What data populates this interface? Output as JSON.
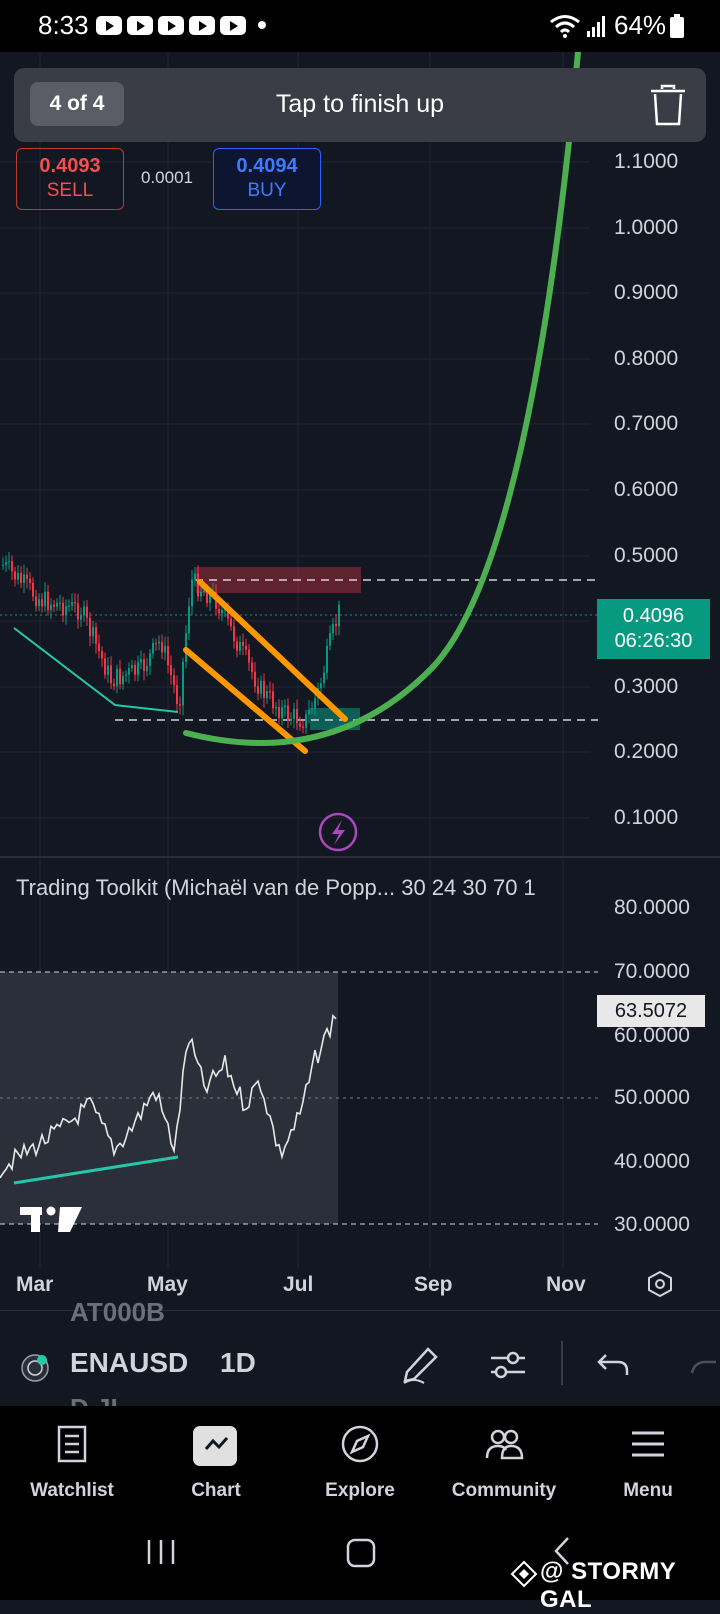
{
  "status_bar": {
    "time": "8:33",
    "notification_icons": [
      "youtube-icon",
      "youtube-icon",
      "youtube-icon",
      "youtube-icon",
      "youtube-icon"
    ],
    "battery": "64%"
  },
  "toast": {
    "counter": "4 of 4",
    "message": "Tap to finish up",
    "action_icon": "trash-icon"
  },
  "trade": {
    "sell_price": "0.4093",
    "sell_label": "SELL",
    "spread": "0.0001",
    "buy_price": "0.4094",
    "buy_label": "BUY"
  },
  "price_axis": [
    "1.1000",
    "1.0000",
    "0.9000",
    "0.8000",
    "0.7000",
    "0.6000",
    "0.5000",
    "0.3000",
    "0.2000",
    "0.1000"
  ],
  "current_price": {
    "price": "0.4096",
    "countdown": "06:26:30"
  },
  "indicator": {
    "title": "Trading Toolkit (Michaël van de Popp... 30 24 30 70 1",
    "axis": [
      "80.0000",
      "70.0000",
      "60.0000",
      "50.0000",
      "40.0000",
      "30.0000"
    ],
    "current_value": "63.5072"
  },
  "time_axis": [
    "Mar",
    "May",
    "Jul",
    "Sep",
    "Nov"
  ],
  "toolbar": {
    "symbol": "ENAUSD",
    "symbol_above": "AT000B",
    "symbol_below": "D.JI",
    "interval": "1D"
  },
  "bottom_nav": [
    {
      "label": "Watchlist",
      "icon": "watchlist-icon"
    },
    {
      "label": "Chart",
      "icon": "chart-icon"
    },
    {
      "label": "Explore",
      "icon": "compass-icon"
    },
    {
      "label": "Community",
      "icon": "community-icon"
    },
    {
      "label": "Menu",
      "icon": "menu-icon"
    }
  ],
  "watermark": "@ STORMY GAL",
  "colors": {
    "background": "#131722",
    "up": "#089981",
    "down": "#f23645",
    "curve": "#4caf50",
    "channel": "#ff9800",
    "trendline": "#26c6aa"
  }
}
